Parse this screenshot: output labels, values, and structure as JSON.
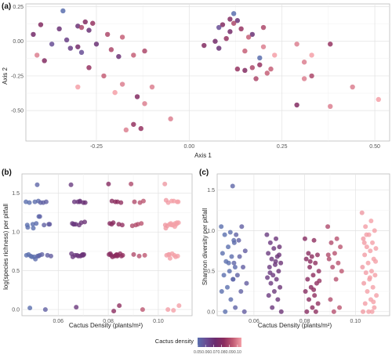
{
  "legend": {
    "title": "Cactus density",
    "ticks": [
      "0.05",
      "0.06",
      "0.07",
      "0.08",
      "0.09",
      "0.10"
    ],
    "colors": [
      "#5b6fae",
      "#6a4c93",
      "#6b2c6e",
      "#8b2c5e",
      "#c05a73",
      "#f4a0a8"
    ]
  },
  "chart_data": [
    {
      "id": "a",
      "panel_label": "(a)",
      "type": "scatter",
      "xlabel": "Axis 1",
      "ylabel": "Axis 2",
      "xlim": [
        -0.44,
        0.54
      ],
      "ylim": [
        -0.72,
        0.27
      ],
      "xticks": [
        -0.25,
        0.0,
        0.25,
        0.5
      ],
      "xtick_labels": [
        "-0.25",
        "0.00",
        "0.25",
        "0.50"
      ],
      "yticks": [
        0.25,
        0.0,
        -0.25,
        -0.5
      ],
      "ytick_labels": [
        "0.25",
        "0.00",
        "-0.25",
        "-0.50"
      ],
      "grid": true,
      "color_by": "cactus density",
      "points": [
        {
          "x": -0.34,
          "y": 0.22,
          "d": 0.05
        },
        {
          "x": -0.4,
          "y": 0.12,
          "d": 0.08
        },
        {
          "x": -0.35,
          "y": 0.09,
          "d": 0.07
        },
        {
          "x": -0.42,
          "y": 0.05,
          "d": 0.075
        },
        {
          "x": -0.3,
          "y": 0.11,
          "d": 0.07
        },
        {
          "x": -0.29,
          "y": 0.1,
          "d": 0.09
        },
        {
          "x": -0.28,
          "y": 0.14,
          "d": 0.08
        },
        {
          "x": -0.26,
          "y": 0.13,
          "d": 0.085
        },
        {
          "x": -0.27,
          "y": 0.08,
          "d": 0.07
        },
        {
          "x": -0.22,
          "y": 0.05,
          "d": 0.09
        },
        {
          "x": -0.18,
          "y": 0.03,
          "d": 0.095
        },
        {
          "x": -0.33,
          "y": 0.01,
          "d": 0.065
        },
        {
          "x": -0.37,
          "y": -0.02,
          "d": 0.06
        },
        {
          "x": -0.32,
          "y": -0.05,
          "d": 0.065
        },
        {
          "x": -0.3,
          "y": -0.04,
          "d": 0.075
        },
        {
          "x": -0.25,
          "y": -0.02,
          "d": 0.07
        },
        {
          "x": -0.21,
          "y": -0.06,
          "d": 0.09
        },
        {
          "x": -0.29,
          "y": -0.08,
          "d": 0.06
        },
        {
          "x": -0.41,
          "y": -0.1,
          "d": 0.1
        },
        {
          "x": -0.39,
          "y": -0.14,
          "d": 0.08
        },
        {
          "x": -0.27,
          "y": -0.19,
          "d": 0.085
        },
        {
          "x": -0.19,
          "y": -0.11,
          "d": 0.07
        },
        {
          "x": -0.15,
          "y": -0.1,
          "d": 0.095
        },
        {
          "x": -0.12,
          "y": -0.07,
          "d": 0.09
        },
        {
          "x": -0.23,
          "y": -0.25,
          "d": 0.095
        },
        {
          "x": -0.3,
          "y": -0.33,
          "d": 0.105
        },
        {
          "x": -0.18,
          "y": -0.31,
          "d": 0.1
        },
        {
          "x": -0.2,
          "y": -0.37,
          "d": 0.105
        },
        {
          "x": -0.14,
          "y": -0.4,
          "d": 0.08
        },
        {
          "x": -0.1,
          "y": -0.33,
          "d": 0.1
        },
        {
          "x": -0.12,
          "y": -0.45,
          "d": 0.1
        },
        {
          "x": -0.15,
          "y": -0.6,
          "d": 0.085
        },
        {
          "x": -0.17,
          "y": -0.64,
          "d": 0.1
        },
        {
          "x": -0.13,
          "y": -0.63,
          "d": 0.085
        },
        {
          "x": -0.05,
          "y": -0.56,
          "d": 0.1
        },
        {
          "x": 0.12,
          "y": 0.2,
          "d": 0.05
        },
        {
          "x": 0.11,
          "y": 0.16,
          "d": 0.08
        },
        {
          "x": 0.13,
          "y": 0.15,
          "d": 0.07
        },
        {
          "x": 0.12,
          "y": 0.13,
          "d": 0.09
        },
        {
          "x": 0.09,
          "y": 0.12,
          "d": 0.08
        },
        {
          "x": 0.08,
          "y": 0.1,
          "d": 0.06
        },
        {
          "x": 0.14,
          "y": 0.09,
          "d": 0.085
        },
        {
          "x": 0.11,
          "y": 0.07,
          "d": 0.075
        },
        {
          "x": 0.17,
          "y": 0.05,
          "d": 0.07
        },
        {
          "x": 0.16,
          "y": 0.03,
          "d": 0.095
        },
        {
          "x": 0.2,
          "y": 0.1,
          "d": 0.09
        },
        {
          "x": 0.04,
          "y": -0.03,
          "d": 0.08
        },
        {
          "x": 0.07,
          "y": 0.0,
          "d": 0.075
        },
        {
          "x": 0.1,
          "y": 0.02,
          "d": 0.085
        },
        {
          "x": 0.08,
          "y": -0.05,
          "d": 0.07
        },
        {
          "x": 0.15,
          "y": -0.07,
          "d": 0.095
        },
        {
          "x": 0.2,
          "y": -0.04,
          "d": 0.1
        },
        {
          "x": 0.19,
          "y": -0.12,
          "d": 0.05
        },
        {
          "x": 0.23,
          "y": -0.1,
          "d": 0.105
        },
        {
          "x": 0.13,
          "y": -0.2,
          "d": 0.085
        },
        {
          "x": 0.15,
          "y": -0.21,
          "d": 0.08
        },
        {
          "x": 0.17,
          "y": -0.19,
          "d": 0.09
        },
        {
          "x": 0.19,
          "y": -0.17,
          "d": 0.085
        },
        {
          "x": 0.18,
          "y": -0.27,
          "d": 0.09
        },
        {
          "x": 0.21,
          "y": -0.23,
          "d": 0.095
        },
        {
          "x": 0.22,
          "y": -0.2,
          "d": 0.095
        },
        {
          "x": 0.29,
          "y": -0.02,
          "d": 0.1
        },
        {
          "x": 0.38,
          "y": -0.02,
          "d": 0.085
        },
        {
          "x": 0.33,
          "y": -0.1,
          "d": 0.105
        },
        {
          "x": 0.31,
          "y": -0.15,
          "d": 0.1
        },
        {
          "x": 0.31,
          "y": -0.27,
          "d": 0.1
        },
        {
          "x": 0.33,
          "y": -0.25,
          "d": 0.09
        },
        {
          "x": 0.29,
          "y": -0.46,
          "d": 0.08
        },
        {
          "x": 0.38,
          "y": -0.47,
          "d": 0.1
        },
        {
          "x": 0.44,
          "y": -0.33,
          "d": 0.1
        },
        {
          "x": 0.51,
          "y": -0.42,
          "d": 0.105
        }
      ]
    },
    {
      "id": "b",
      "panel_label": "(b)",
      "type": "scatter",
      "xlabel": "Cactus Density (plants/m²)",
      "ylabel": "log(species richness) per pitfall",
      "xlim": [
        0.0455,
        0.1135
      ],
      "ylim": [
        -0.08,
        1.75
      ],
      "xticks": [
        0.06,
        0.08,
        0.1
      ],
      "xtick_labels": [
        "0.06",
        "0.08",
        "0.10"
      ],
      "yticks": [
        0.0,
        0.5,
        1.0,
        1.5
      ],
      "ytick_labels": [
        "0.0",
        "0.5",
        "1.0",
        "1.5"
      ],
      "grid": true,
      "color_by": "cactus density",
      "groups": [
        {
          "x": 0.05,
          "y": [
            1.39,
            1.39,
            1.38,
            1.4,
            1.1,
            1.09,
            1.11,
            0.69,
            0.7,
            0.68,
            0.71,
            0.69,
            0.68,
            0.7,
            0.65,
            0.02,
            1.2,
            1.05,
            1.06
          ]
        },
        {
          "x": 0.0545,
          "y": [
            1.61,
            1.39,
            1.38,
            1.1,
            1.09,
            0.69,
            0.7,
            0.71,
            0.69,
            0.0,
            1.2,
            1.1,
            1.38
          ]
        },
        {
          "x": 0.068,
          "y": [
            1.61,
            1.4,
            1.39,
            1.38,
            1.39,
            1.11,
            1.12,
            1.1,
            1.13,
            1.09,
            1.1,
            0.71,
            0.7,
            0.72,
            0.69,
            0.7,
            0.71,
            0.69,
            0.68,
            0.7,
            0.03,
            1.38,
            1.39,
            1.1,
            0.7
          ]
        },
        {
          "x": 0.083,
          "y": [
            1.62,
            1.39,
            1.4,
            1.38,
            1.39,
            1.11,
            1.1,
            1.12,
            1.09,
            0.71,
            0.7,
            0.72,
            0.69,
            0.71,
            0.7,
            0.68,
            0.69,
            0.7,
            0.72,
            0.05,
            -0.02,
            0.7,
            0.69,
            1.1
          ]
        },
        {
          "x": 0.092,
          "y": [
            1.62,
            1.38,
            1.39,
            1.4,
            1.1,
            1.08,
            1.11,
            1.09,
            0.7,
            0.69,
            0.71,
            0.0
          ]
        },
        {
          "x": 0.1055,
          "y": [
            1.62,
            1.4,
            1.38,
            1.39,
            1.4,
            1.41,
            1.11,
            1.1,
            1.12,
            1.09,
            1.08,
            1.1,
            1.11,
            1.09,
            0.7,
            0.71,
            0.69,
            0.72,
            0.7,
            0.68,
            0.66,
            0.05,
            -0.01,
            0.0,
            1.12,
            1.09,
            1.05,
            1.07,
            0.71,
            1.39
          ]
        }
      ]
    },
    {
      "id": "c",
      "panel_label": "(c)",
      "type": "scatter",
      "xlabel": "Cactus Density (plants/m²)",
      "ylabel": "Shannon diversity per pitfall",
      "xlim": [
        0.0455,
        0.1135
      ],
      "ylim": [
        -0.05,
        1.7
      ],
      "xticks": [
        0.06,
        0.08,
        0.1
      ],
      "xtick_labels": [
        "0.06",
        "0.08",
        "0.10"
      ],
      "yticks": [
        0.0,
        0.5,
        1.0,
        1.5
      ],
      "ytick_labels": [
        "0.0",
        "0.5",
        "1.0",
        "1.5"
      ],
      "grid": true,
      "color_by": "cactus density",
      "groups": [
        {
          "x": 0.05,
          "y": [
            1.05,
            0.98,
            0.95,
            0.88,
            0.8,
            0.72,
            0.68,
            0.62,
            0.55,
            0.5,
            0.45,
            0.4,
            0.3,
            0.25,
            0.15,
            0.0,
            0.85,
            0.6
          ]
        },
        {
          "x": 0.0545,
          "y": [
            1.55,
            1.05,
            0.95,
            0.75,
            0.68,
            0.6,
            0.55,
            0.45,
            0.35,
            0.25,
            0.05,
            0.0,
            0.88,
            0.4
          ]
        },
        {
          "x": 0.068,
          "y": [
            0.95,
            0.9,
            0.85,
            0.8,
            0.78,
            0.72,
            0.68,
            0.65,
            0.6,
            0.58,
            0.55,
            0.5,
            0.45,
            0.42,
            0.4,
            0.35,
            0.3,
            0.25,
            0.2,
            0.15,
            0.05,
            0.0,
            0.62,
            0.48,
            0.7
          ]
        },
        {
          "x": 0.083,
          "y": [
            0.9,
            0.88,
            0.72,
            0.7,
            0.68,
            0.65,
            0.6,
            0.55,
            0.5,
            0.45,
            0.4,
            0.35,
            0.3,
            0.25,
            0.2,
            0.15,
            0.1,
            0.05,
            0.0,
            0.0,
            0.62,
            0.38,
            0.27
          ]
        },
        {
          "x": 0.092,
          "y": [
            1.05,
            0.9,
            0.85,
            0.8,
            0.72,
            0.65,
            0.6,
            0.55,
            0.5,
            0.4,
            0.15,
            0.05,
            0.0,
            0.7
          ]
        },
        {
          "x": 0.1055,
          "y": [
            1.22,
            1.12,
            1.05,
            1.0,
            0.95,
            0.9,
            0.85,
            0.8,
            0.78,
            0.75,
            0.7,
            0.65,
            0.6,
            0.55,
            0.5,
            0.48,
            0.45,
            0.4,
            0.35,
            0.3,
            0.25,
            0.2,
            0.15,
            0.1,
            0.05,
            0.0,
            0.0,
            0.0,
            0.95,
            0.62,
            0.42,
            0.85,
            0.12
          ]
        }
      ]
    }
  ]
}
